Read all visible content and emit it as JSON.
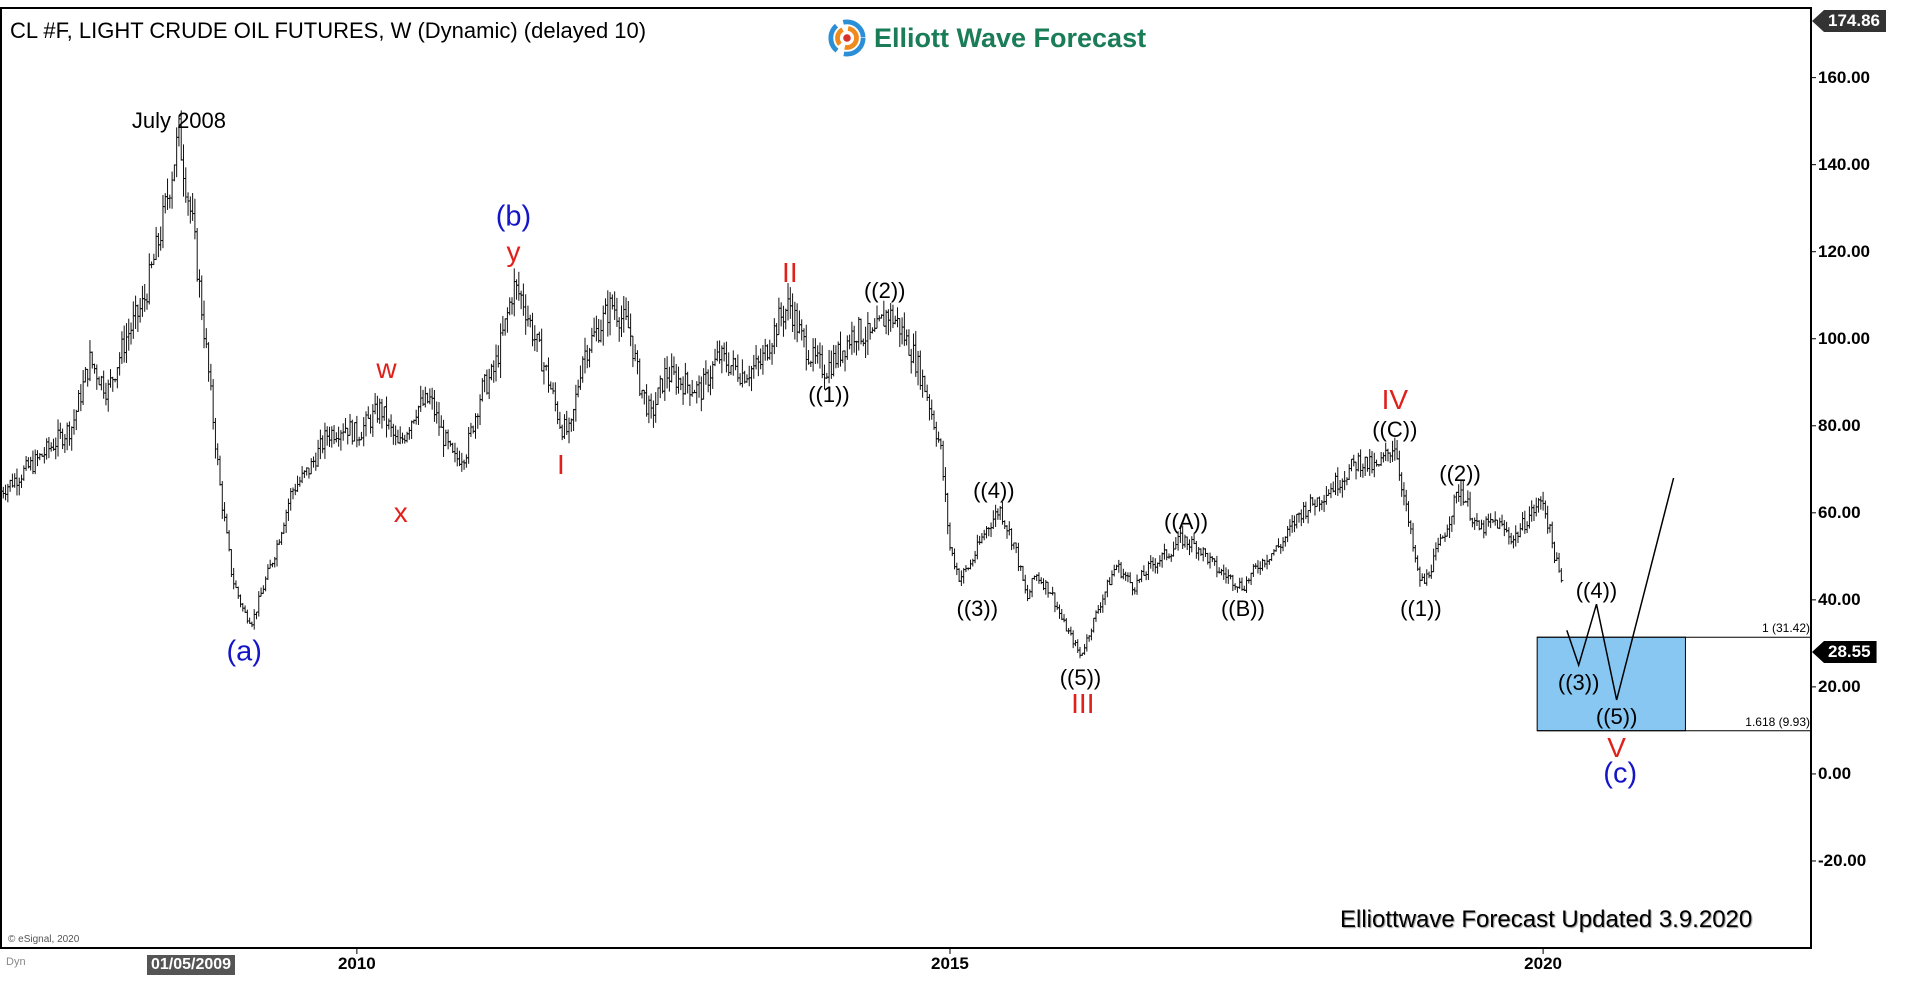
{
  "header": {
    "title": "CL #F, LIGHT CRUDE OIL FUTURES, W (Dynamic) (delayed 10)",
    "brand": "Elliott Wave Forecast",
    "brand_logo_icon": "ewf-swirl-logo-icon"
  },
  "footer": {
    "updated": "Elliottwave Forecast Updated 3.9.2020",
    "copyright": "© eSignal, 2020",
    "dyn_label": "Dyn",
    "cursor_date": "01/05/2009"
  },
  "price_flags": {
    "top": "174.86",
    "last": "28.55"
  },
  "colors": {
    "wave_black": "#000000",
    "wave_red": "#e0201a",
    "wave_blue": "#1515c8",
    "target_box": "#87c7f2",
    "brand_green": "#1a7d58"
  },
  "chart_data": {
    "type": "ohlc",
    "x_axis": {
      "ticks": [
        "2010",
        "2015",
        "2020"
      ],
      "range": [
        2007.0,
        2022.25
      ]
    },
    "y_axis": {
      "ticks": [
        "160.00",
        "140.00",
        "120.00",
        "100.00",
        "80.00",
        "60.00",
        "40.00",
        "20.00",
        "0.00",
        "-20.00"
      ],
      "range": [
        -40,
        176
      ]
    },
    "grid": false,
    "price_path": [
      [
        2007.0,
        65
      ],
      [
        2007.3,
        72
      ],
      [
        2007.6,
        80
      ],
      [
        2007.75,
        95
      ],
      [
        2007.9,
        88
      ],
      [
        2008.05,
        100
      ],
      [
        2008.2,
        108
      ],
      [
        2008.35,
        125
      ],
      [
        2008.5,
        147
      ],
      [
        2008.62,
        125
      ],
      [
        2008.72,
        100
      ],
      [
        2008.85,
        65
      ],
      [
        2008.95,
        45
      ],
      [
        2009.05,
        37
      ],
      [
        2009.12,
        35
      ],
      [
        2009.2,
        42
      ],
      [
        2009.3,
        50
      ],
      [
        2009.45,
        65
      ],
      [
        2009.6,
        70
      ],
      [
        2009.75,
        78
      ],
      [
        2009.9,
        80
      ],
      [
        2010.0,
        78
      ],
      [
        2010.2,
        84
      ],
      [
        2010.35,
        75
      ],
      [
        2010.5,
        84
      ],
      [
        2010.62,
        86
      ],
      [
        2010.72,
        78
      ],
      [
        2010.82,
        72
      ],
      [
        2010.92,
        74
      ],
      [
        2011.05,
        88
      ],
      [
        2011.15,
        92
      ],
      [
        2011.25,
        103
      ],
      [
        2011.32,
        112
      ],
      [
        2011.4,
        109
      ],
      [
        2011.5,
        100
      ],
      [
        2011.6,
        92
      ],
      [
        2011.72,
        80
      ],
      [
        2011.8,
        78
      ],
      [
        2011.9,
        96
      ],
      [
        2012.05,
        103
      ],
      [
        2012.15,
        108
      ],
      [
        2012.3,
        102
      ],
      [
        2012.38,
        90
      ],
      [
        2012.48,
        82
      ],
      [
        2012.6,
        92
      ],
      [
        2012.75,
        90
      ],
      [
        2012.9,
        88
      ],
      [
        2013.05,
        96
      ],
      [
        2013.25,
        92
      ],
      [
        2013.4,
        94
      ],
      [
        2013.55,
        104
      ],
      [
        2013.65,
        108
      ],
      [
        2013.75,
        100
      ],
      [
        2013.85,
        95
      ],
      [
        2013.95,
        93
      ],
      [
        2014.05,
        96
      ],
      [
        2014.2,
        102
      ],
      [
        2014.35,
        100
      ],
      [
        2014.47,
        106
      ],
      [
        2014.55,
        104
      ],
      [
        2014.7,
        96
      ],
      [
        2014.8,
        88
      ],
      [
        2014.92,
        75
      ],
      [
        2015.0,
        52
      ],
      [
        2015.08,
        45
      ],
      [
        2015.17,
        48
      ],
      [
        2015.3,
        56
      ],
      [
        2015.42,
        61
      ],
      [
        2015.55,
        52
      ],
      [
        2015.65,
        40
      ],
      [
        2015.72,
        46
      ],
      [
        2015.85,
        42
      ],
      [
        2015.95,
        35
      ],
      [
        2016.05,
        30
      ],
      [
        2016.1,
        27
      ],
      [
        2016.25,
        38
      ],
      [
        2016.4,
        48
      ],
      [
        2016.55,
        43
      ],
      [
        2016.7,
        48
      ],
      [
        2016.85,
        51
      ],
      [
        2016.95,
        54
      ],
      [
        2017.1,
        52
      ],
      [
        2017.25,
        47
      ],
      [
        2017.47,
        43
      ],
      [
        2017.6,
        48
      ],
      [
        2017.8,
        53
      ],
      [
        2017.95,
        60
      ],
      [
        2018.1,
        63
      ],
      [
        2018.3,
        68
      ],
      [
        2018.45,
        72
      ],
      [
        2018.6,
        70
      ],
      [
        2018.75,
        76
      ],
      [
        2018.85,
        60
      ],
      [
        2018.95,
        45
      ],
      [
        2019.0,
        44
      ],
      [
        2019.15,
        54
      ],
      [
        2019.3,
        66
      ],
      [
        2019.45,
        56
      ],
      [
        2019.6,
        58
      ],
      [
        2019.75,
        54
      ],
      [
        2019.9,
        60
      ],
      [
        2020.0,
        63
      ],
      [
        2020.1,
        50
      ],
      [
        2020.17,
        42
      ]
    ],
    "projection": {
      "path": [
        [
          2020.2,
          33
        ],
        [
          2020.3,
          25
        ],
        [
          2020.45,
          39
        ],
        [
          2020.62,
          17
        ],
        [
          2021.1,
          68
        ]
      ],
      "target_zone": {
        "x_range": [
          2019.95,
          2021.2
        ],
        "y_range": [
          9.93,
          31.42
        ]
      }
    },
    "fib_levels": [
      {
        "label": "1 (31.42)",
        "value": 31.42
      },
      {
        "label": "1.618 (9.93)",
        "value": 9.93
      }
    ],
    "annotations": [
      {
        "text": "July 2008",
        "x": 2008.5,
        "y": 150,
        "style": "note"
      },
      {
        "text": "(a)",
        "x": 2009.05,
        "y": 28,
        "style": "blue"
      },
      {
        "text": "w",
        "x": 2010.25,
        "y": 93,
        "style": "red"
      },
      {
        "text": "x",
        "x": 2010.37,
        "y": 60,
        "style": "red"
      },
      {
        "text": "(b)",
        "x": 2011.32,
        "y": 128,
        "style": "blue"
      },
      {
        "text": "y",
        "x": 2011.32,
        "y": 120,
        "style": "red"
      },
      {
        "text": "I",
        "x": 2011.72,
        "y": 71,
        "style": "red"
      },
      {
        "text": "II",
        "x": 2013.65,
        "y": 115,
        "style": "red"
      },
      {
        "text": "((1))",
        "x": 2013.98,
        "y": 87,
        "style": "black"
      },
      {
        "text": "((2))",
        "x": 2014.45,
        "y": 111,
        "style": "black"
      },
      {
        "text": "((3))",
        "x": 2015.23,
        "y": 38,
        "style": "black"
      },
      {
        "text": "((4))",
        "x": 2015.37,
        "y": 65,
        "style": "black"
      },
      {
        "text": "((5))",
        "x": 2016.1,
        "y": 22,
        "style": "black"
      },
      {
        "text": "III",
        "x": 2016.12,
        "y": 16,
        "style": "red"
      },
      {
        "text": "((A))",
        "x": 2016.99,
        "y": 58,
        "style": "black"
      },
      {
        "text": "((B))",
        "x": 2017.47,
        "y": 38,
        "style": "black"
      },
      {
        "text": "IV",
        "x": 2018.75,
        "y": 86,
        "style": "red"
      },
      {
        "text": "((C))",
        "x": 2018.75,
        "y": 79,
        "style": "black"
      },
      {
        "text": "((1))",
        "x": 2018.97,
        "y": 38,
        "style": "black"
      },
      {
        "text": "((2))",
        "x": 2019.3,
        "y": 69,
        "style": "black"
      },
      {
        "text": "((3))",
        "x": 2020.3,
        "y": 21,
        "style": "black"
      },
      {
        "text": "((4))",
        "x": 2020.45,
        "y": 42,
        "style": "black"
      },
      {
        "text": "((5))",
        "x": 2020.62,
        "y": 13,
        "style": "black"
      },
      {
        "text": "V",
        "x": 2020.62,
        "y": 6,
        "style": "red"
      },
      {
        "text": "(c)",
        "x": 2020.65,
        "y": 0,
        "style": "blue"
      }
    ]
  }
}
